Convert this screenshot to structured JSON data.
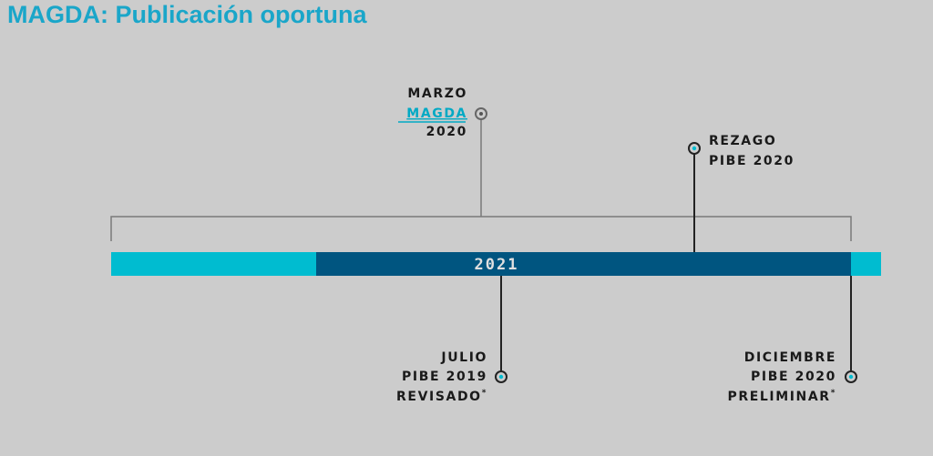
{
  "header": {
    "title": "MAGDA: Publicación oportuna"
  },
  "timeline": {
    "year": "2021",
    "events": [
      {
        "lines": [
          "MARZO",
          "MAGDA",
          "2020"
        ]
      },
      {
        "lines": [
          "REZAGO",
          "PIBE 2020"
        ]
      },
      {
        "lines": [
          "JULIO",
          "PIBE 2019",
          "REVISADO"
        ],
        "note": "*"
      },
      {
        "lines": [
          "DICIEMBRE",
          "PIBE 2020",
          "PRELIMINAR"
        ],
        "note": "*"
      }
    ]
  }
}
